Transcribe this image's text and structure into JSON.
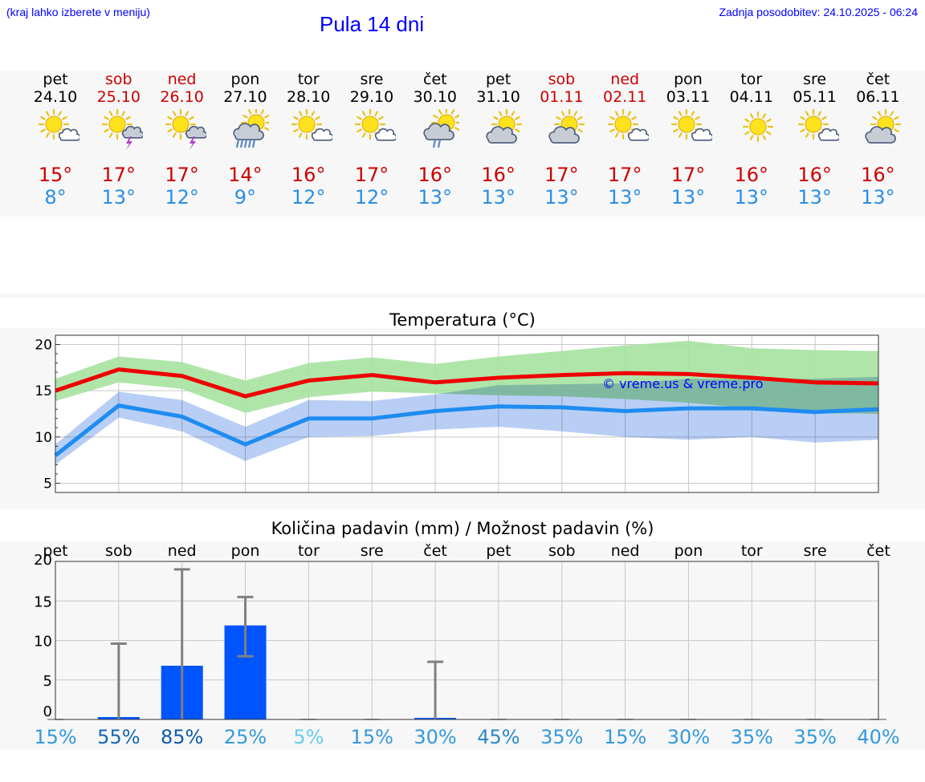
{
  "header": {
    "note": "(kraj lahko izberete v meniju)",
    "title": "Pula 14 dni",
    "updated": "Zadnja posodobitev: 24.10.2025 - 06:24"
  },
  "colors": {
    "header_text": "#0000ff",
    "weekend": "#cc0000",
    "max_temp": "#cc0000",
    "min_temp": "#2a8ee6",
    "max_line": "#ee0000",
    "min_line": "#1e8cf0",
    "max_band": "#a6e2a0",
    "min_band": "#adc6f2",
    "precip_bar": "#0055ff",
    "error_bar": "#808080"
  },
  "days": [
    {
      "day": "pet",
      "date": "24.10",
      "weekend": false,
      "icon": "sun-cloud-icon",
      "tmax": "15°",
      "tmin": "8°"
    },
    {
      "day": "sob",
      "date": "25.10",
      "weekend": true,
      "icon": "sun-thunder-icon",
      "tmax": "17°",
      "tmin": "13°"
    },
    {
      "day": "ned",
      "date": "26.10",
      "weekend": true,
      "icon": "sun-thunder-icon",
      "tmax": "17°",
      "tmin": "12°"
    },
    {
      "day": "pon",
      "date": "27.10",
      "weekend": false,
      "icon": "cloud-rain-icon",
      "tmax": "14°",
      "tmin": "9°"
    },
    {
      "day": "tor",
      "date": "28.10",
      "weekend": false,
      "icon": "sun-cloud-icon",
      "tmax": "16°",
      "tmin": "12°"
    },
    {
      "day": "sre",
      "date": "29.10",
      "weekend": false,
      "icon": "sun-cloud-icon",
      "tmax": "17°",
      "tmin": "12°"
    },
    {
      "day": "čet",
      "date": "30.10",
      "weekend": false,
      "icon": "sun-cloud-rain-icon",
      "tmax": "16°",
      "tmin": "13°"
    },
    {
      "day": "pet",
      "date": "31.10",
      "weekend": false,
      "icon": "sun-cloud-big-icon",
      "tmax": "16°",
      "tmin": "13°"
    },
    {
      "day": "sob",
      "date": "01.11",
      "weekend": true,
      "icon": "sun-cloud-big-icon",
      "tmax": "17°",
      "tmin": "13°"
    },
    {
      "day": "ned",
      "date": "02.11",
      "weekend": true,
      "icon": "sun-cloud-icon",
      "tmax": "17°",
      "tmin": "13°"
    },
    {
      "day": "pon",
      "date": "03.11",
      "weekend": false,
      "icon": "sun-cloud-icon",
      "tmax": "17°",
      "tmin": "13°"
    },
    {
      "day": "tor",
      "date": "04.11",
      "weekend": false,
      "icon": "sun-icon",
      "tmax": "16°",
      "tmin": "13°"
    },
    {
      "day": "sre",
      "date": "05.11",
      "weekend": false,
      "icon": "sun-cloud-icon",
      "tmax": "16°",
      "tmin": "13°"
    },
    {
      "day": "čet",
      "date": "06.11",
      "weekend": false,
      "icon": "sun-cloud-big-icon",
      "tmax": "16°",
      "tmin": "13°"
    }
  ],
  "chart_data": [
    {
      "type": "line",
      "title": "Temperatura (°C)",
      "watermark": "© vreme.us & vreme.pro",
      "ylim": [
        4,
        21
      ],
      "yticks": [
        5,
        10,
        15,
        20
      ],
      "x": [
        0,
        1,
        2,
        3,
        4,
        5,
        6,
        7,
        8,
        9,
        10,
        11,
        12,
        13
      ],
      "series": [
        {
          "name": "max",
          "values": [
            15.0,
            17.3,
            16.6,
            14.4,
            16.1,
            16.7,
            15.9,
            16.4,
            16.7,
            16.9,
            16.8,
            16.4,
            15.9,
            15.8
          ]
        },
        {
          "name": "max_band_high",
          "values": [
            16.3,
            18.7,
            18.1,
            16.1,
            18.0,
            18.6,
            17.9,
            18.7,
            19.3,
            19.9,
            20.4,
            19.6,
            19.4,
            19.3
          ]
        },
        {
          "name": "max_band_low",
          "values": [
            13.9,
            15.9,
            15.2,
            12.6,
            14.3,
            14.9,
            14.7,
            14.5,
            14.4,
            14.1,
            13.7,
            13.1,
            12.6,
            12.5
          ]
        },
        {
          "name": "min",
          "values": [
            8.0,
            13.4,
            12.2,
            9.2,
            12.0,
            12.0,
            12.8,
            13.3,
            13.2,
            12.8,
            13.1,
            13.1,
            12.7,
            13.0
          ]
        },
        {
          "name": "min_band_high",
          "values": [
            9.2,
            14.9,
            14.0,
            11.1,
            14.0,
            13.9,
            14.6,
            15.6,
            15.7,
            15.8,
            16.3,
            16.2,
            16.3,
            16.5
          ]
        },
        {
          "name": "min_band_low",
          "values": [
            7.0,
            12.1,
            10.6,
            7.4,
            10.0,
            10.1,
            10.8,
            11.1,
            10.6,
            10.0,
            9.7,
            10.0,
            9.4,
            9.7
          ]
        }
      ]
    },
    {
      "type": "bar",
      "title": "Količina padavin (mm) / Možnost padavin (%)",
      "categories": [
        "pet",
        "sob",
        "ned",
        "pon",
        "tor",
        "sre",
        "čet",
        "pet",
        "sob",
        "ned",
        "pon",
        "tor",
        "sre",
        "čet"
      ],
      "ylim": [
        0,
        20
      ],
      "yticks": [
        0,
        5,
        10,
        15,
        20
      ],
      "values": [
        0,
        0.3,
        6.8,
        11.9,
        0,
        0,
        0.2,
        0,
        0,
        0,
        0,
        0,
        0,
        0
      ],
      "error_high": [
        0,
        9.6,
        19.0,
        15.5,
        0,
        0,
        7.3,
        0,
        0,
        0,
        0,
        0,
        0,
        0
      ],
      "error_low": [
        0,
        0,
        0,
        8.0,
        0,
        0,
        0,
        0,
        0,
        0,
        0,
        0,
        0,
        0
      ],
      "probability": [
        "15%",
        "55%",
        "85%",
        "25%",
        "5%",
        "15%",
        "30%",
        "45%",
        "35%",
        "15%",
        "30%",
        "35%",
        "35%",
        "40%"
      ],
      "probability_colors": [
        "#3399dd",
        "#1566b5",
        "#0f5aa8",
        "#3399dd",
        "#66ccee",
        "#3399dd",
        "#3399dd",
        "#2a88cc",
        "#3399dd",
        "#3399dd",
        "#3399dd",
        "#3399dd",
        "#3399dd",
        "#3399dd"
      ]
    }
  ]
}
